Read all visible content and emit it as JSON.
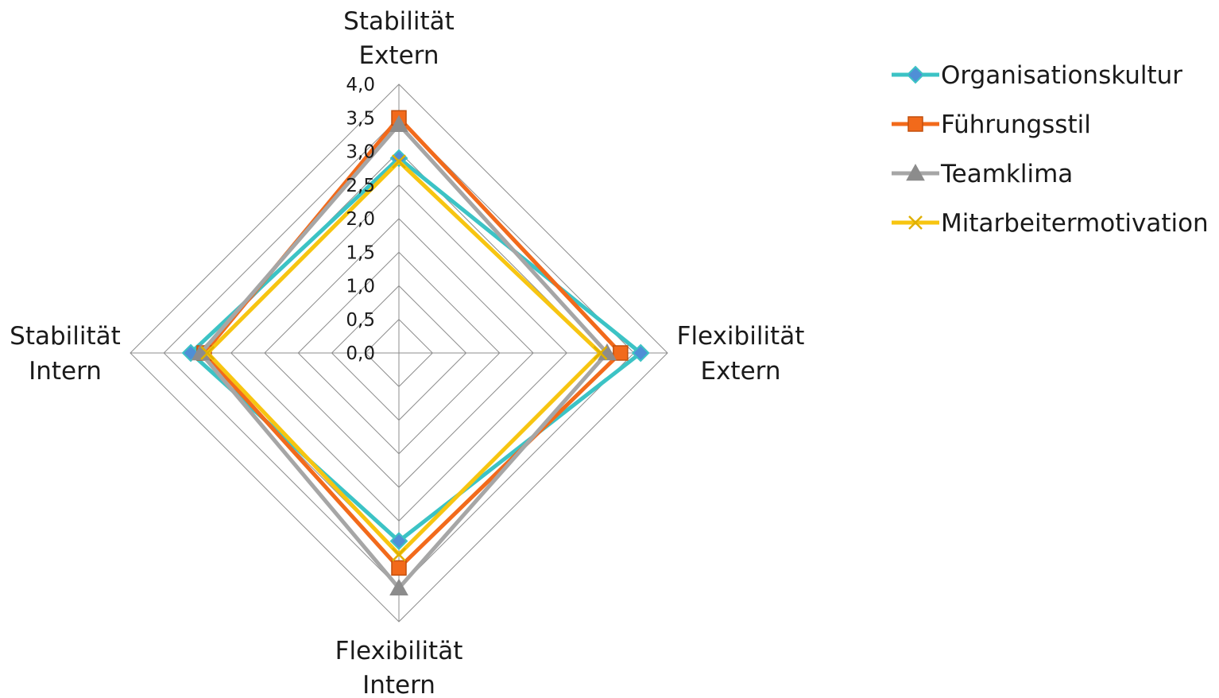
{
  "chart_data": {
    "type": "radar",
    "axes": [
      {
        "lines": [
          "Stabilität",
          "Extern"
        ]
      },
      {
        "lines": [
          "Flexibilität",
          "Extern"
        ]
      },
      {
        "lines": [
          "Flexibilität",
          "Intern"
        ]
      },
      {
        "lines": [
          "Stabilität",
          "Intern"
        ]
      }
    ],
    "ticks": [
      "0,0",
      "0,5",
      "1,0",
      "1,5",
      "2,0",
      "2,5",
      "3,0",
      "3,5",
      "4,0"
    ],
    "rlim": [
      0,
      4
    ],
    "grid": true,
    "legend_position": "top-right",
    "series": [
      {
        "name": "Organisationskultur",
        "color": "#3cc3c5",
        "marker": "diamond",
        "values": [
          2.9,
          3.6,
          2.8,
          3.1
        ]
      },
      {
        "name": "Führungsstil",
        "color": "#f26a1b",
        "marker": "square",
        "values": [
          3.5,
          3.3,
          3.2,
          2.9
        ]
      },
      {
        "name": "Teamklima",
        "color": "#a6a6a6",
        "marker": "triangle",
        "values": [
          3.4,
          3.1,
          3.5,
          2.95
        ]
      },
      {
        "name": "Mitarbeitermotivation",
        "color": "#f7c511",
        "marker": "x",
        "values": [
          2.85,
          3.0,
          3.0,
          2.85
        ]
      }
    ]
  }
}
